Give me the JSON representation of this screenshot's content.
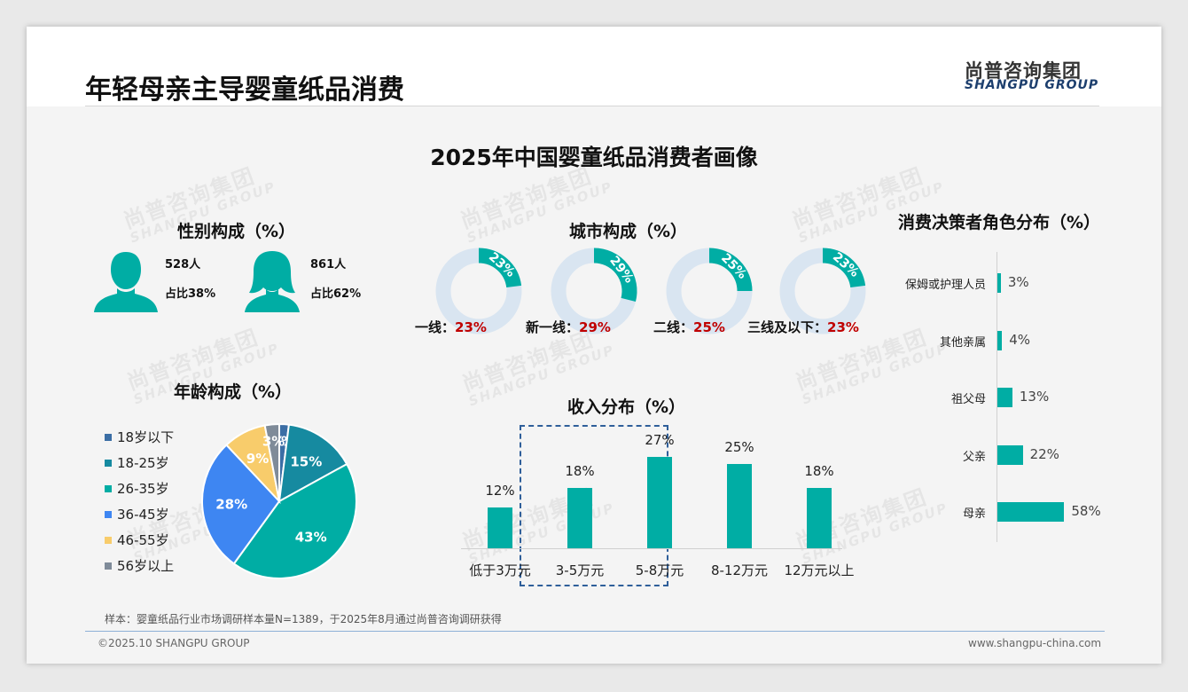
{
  "header": {
    "page_title": "年轻母亲主导婴童纸品消费",
    "logo_cn": "尚普咨询集团",
    "logo_en": "SHANGPU GROUP"
  },
  "main_title": "2025年中国婴童纸品消费者画像",
  "watermark": {
    "cn": "尚普咨询集团",
    "en": "SHANGPU GROUP"
  },
  "sections": {
    "gender_title": "性别构成（%）",
    "city_title": "城市构成（%）",
    "role_title": "消费决策者角色分布（%）",
    "age_title": "年龄构成（%）",
    "income_title": "收入分布（%）"
  },
  "gender": {
    "male": {
      "count": "528人",
      "share": "占比38%",
      "icon": "male-person-icon"
    },
    "female": {
      "count": "861人",
      "share": "占比62%",
      "icon": "female-person-icon"
    }
  },
  "city": [
    {
      "label": "一线：",
      "value_text": "23%",
      "inner": "23%"
    },
    {
      "label": "新一线：",
      "value_text": "29%",
      "inner": "29%"
    },
    {
      "label": "二线：",
      "value_text": "25%",
      "inner": "25%"
    },
    {
      "label": "三线及以下：",
      "value_text": "23%",
      "inner": "23%"
    }
  ],
  "age_legend": [
    "18岁以下",
    "18-25岁",
    "26-35岁",
    "36-45岁",
    "46-55岁",
    "56岁以上"
  ],
  "income": {
    "categories": [
      "低于3万元",
      "3-5万元",
      "5-8万元",
      "8-12万元",
      "12万元以上"
    ],
    "labels": [
      "12%",
      "18%",
      "27%",
      "25%",
      "18%"
    ]
  },
  "role": {
    "categories": [
      "保姆或护理人员",
      "其他亲属",
      "祖父母",
      "父亲",
      "母亲"
    ],
    "labels": [
      "3%",
      "4%",
      "13%",
      "22%",
      "58%"
    ]
  },
  "footer": {
    "note": "样本：婴童纸品行业市场调研样本量N=1389，于2025年8月通过尚普咨询调研获得",
    "copyright": "©2025.10 SHANGPU GROUP",
    "url": "www.shangpu-china.com"
  },
  "colors": {
    "teal": "#00ada4",
    "donut_bg": "#d9e5f1",
    "highlight_red": "#c00000",
    "age": [
      "#3b6ea5",
      "#168aa0",
      "#00ada4",
      "#3e86f2",
      "#f8cc6b",
      "#7f8b99"
    ]
  },
  "chart_data": [
    {
      "type": "bar",
      "title": "性别构成（%）",
      "categories": [
        "男",
        "女"
      ],
      "values": [
        38,
        62
      ]
    },
    {
      "type": "pie",
      "title": "城市构成（%）",
      "categories": [
        "一线",
        "新一线",
        "二线",
        "三线及以下"
      ],
      "values": [
        23,
        29,
        25,
        23
      ]
    },
    {
      "type": "pie",
      "title": "年龄构成（%）",
      "categories": [
        "18岁以下",
        "18-25岁",
        "26-35岁",
        "36-45岁",
        "46-55岁",
        "56岁以上"
      ],
      "values": [
        2,
        15,
        43,
        28,
        9,
        3
      ],
      "legend": "left"
    },
    {
      "type": "bar",
      "title": "收入分布（%）",
      "categories": [
        "低于3万元",
        "3-5万元",
        "5-8万元",
        "8-12万元",
        "12万元以上"
      ],
      "values": [
        12,
        18,
        27,
        25,
        18
      ],
      "ylim": [
        0,
        30
      ]
    },
    {
      "type": "bar",
      "orientation": "horizontal",
      "title": "消费决策者角色分布（%）",
      "categories": [
        "保姆或护理人员",
        "其他亲属",
        "祖父母",
        "父亲",
        "母亲"
      ],
      "values": [
        3,
        4,
        13,
        22,
        58
      ]
    }
  ]
}
